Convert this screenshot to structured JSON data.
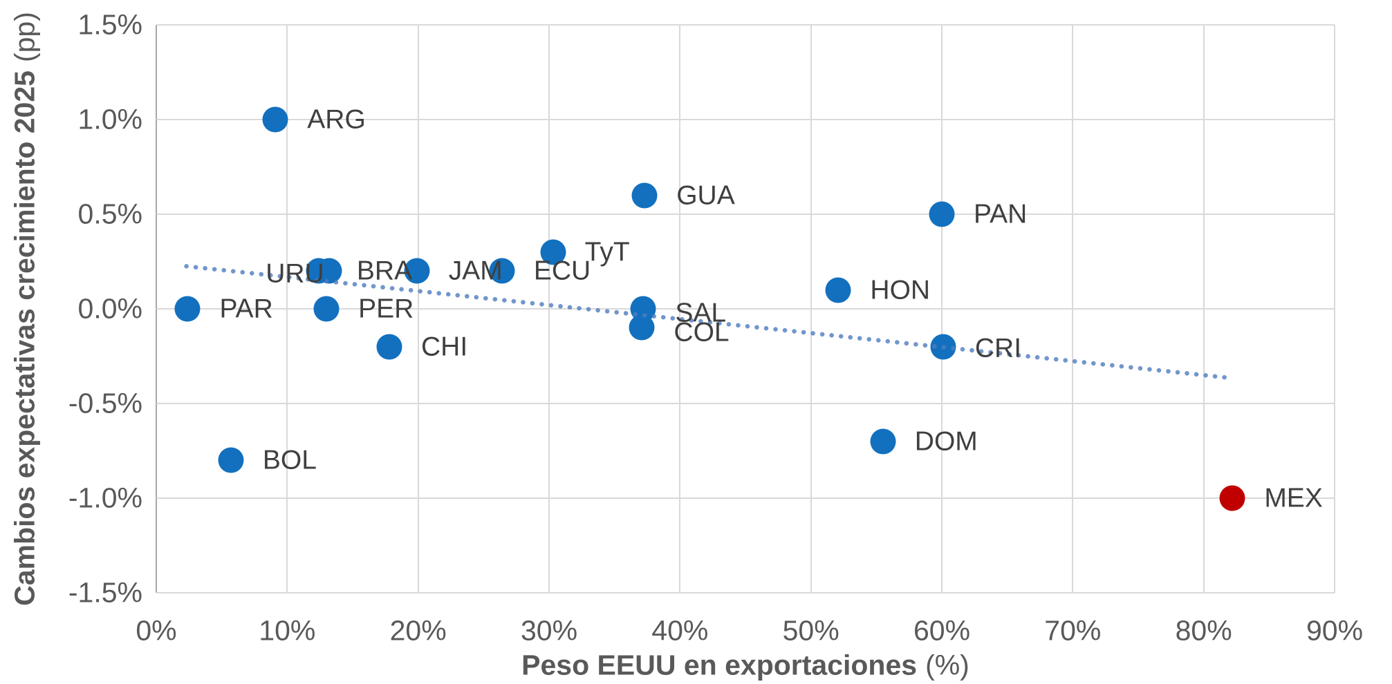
{
  "chart_data": {
    "type": "scatter",
    "title": "",
    "xlabel_bold": "Peso EEUU en exportaciones",
    "xlabel_suffix": "(%)",
    "ylabel_bold": "Cambios expectativas crecimiento 2025",
    "ylabel_suffix": "(pp)",
    "xlim": [
      0,
      90
    ],
    "ylim": [
      -1.5,
      1.5
    ],
    "grid": true,
    "legend": false,
    "point_color": "#1270BF",
    "highlight_color": "#C00000",
    "trend": {
      "style": "dotted",
      "color": "#4E7DC0",
      "x1": 2.3,
      "y1": 0.225,
      "x2": 82.0,
      "y2": -0.365
    },
    "x_ticks": [
      {
        "value": 0,
        "label": "0%"
      },
      {
        "value": 10,
        "label": "10%"
      },
      {
        "value": 20,
        "label": "20%"
      },
      {
        "value": 30,
        "label": "30%"
      },
      {
        "value": 40,
        "label": "40%"
      },
      {
        "value": 50,
        "label": "50%"
      },
      {
        "value": 60,
        "label": "60%"
      },
      {
        "value": 70,
        "label": "70%"
      },
      {
        "value": 80,
        "label": "80%"
      },
      {
        "value": 90,
        "label": "90%"
      }
    ],
    "y_ticks": [
      {
        "value": 1.5,
        "label": "1.5%"
      },
      {
        "value": 1.0,
        "label": "1.0%"
      },
      {
        "value": 0.5,
        "label": "0.5%"
      },
      {
        "value": 0.0,
        "label": "0.0%"
      },
      {
        "value": -0.5,
        "label": "-0.5%"
      },
      {
        "value": -1.0,
        "label": "-1.0%"
      },
      {
        "value": -1.5,
        "label": "-1.5%"
      }
    ],
    "points": [
      {
        "label": "PAR",
        "x": 2.4,
        "y": 0.0
      },
      {
        "label": "BOL",
        "x": 5.7,
        "y": -0.8
      },
      {
        "label": "ARG",
        "x": 9.1,
        "y": 1.0
      },
      {
        "label": "URU",
        "x": 12.4,
        "y": 0.2,
        "label_side": "left",
        "dx": 8,
        "dy": 4
      },
      {
        "label": "PER",
        "x": 13.0,
        "y": 0.0
      },
      {
        "label": "BRA",
        "x": 13.2,
        "y": 0.2,
        "dx": 40
      },
      {
        "label": "CHI",
        "x": 17.8,
        "y": -0.2
      },
      {
        "label": "JAM",
        "x": 19.9,
        "y": 0.2
      },
      {
        "label": "ECU",
        "x": 26.4,
        "y": 0.2
      },
      {
        "label": "TyT",
        "x": 30.3,
        "y": 0.3
      },
      {
        "label": "GUA",
        "x": 37.3,
        "y": 0.6
      },
      {
        "label": "SAL",
        "x": 37.2,
        "y": 0.0,
        "dy": 6
      },
      {
        "label": "COL",
        "x": 37.1,
        "y": -0.1,
        "dy": 7
      },
      {
        "label": "HON",
        "x": 52.1,
        "y": 0.1
      },
      {
        "label": "DOM",
        "x": 55.5,
        "y": -0.7
      },
      {
        "label": "PAN",
        "x": 60.0,
        "y": 0.5
      },
      {
        "label": "CRI",
        "x": 60.1,
        "y": -0.2,
        "dy": 2
      },
      {
        "label": "MEX",
        "x": 82.2,
        "y": -1.0,
        "highlight": true
      }
    ]
  }
}
